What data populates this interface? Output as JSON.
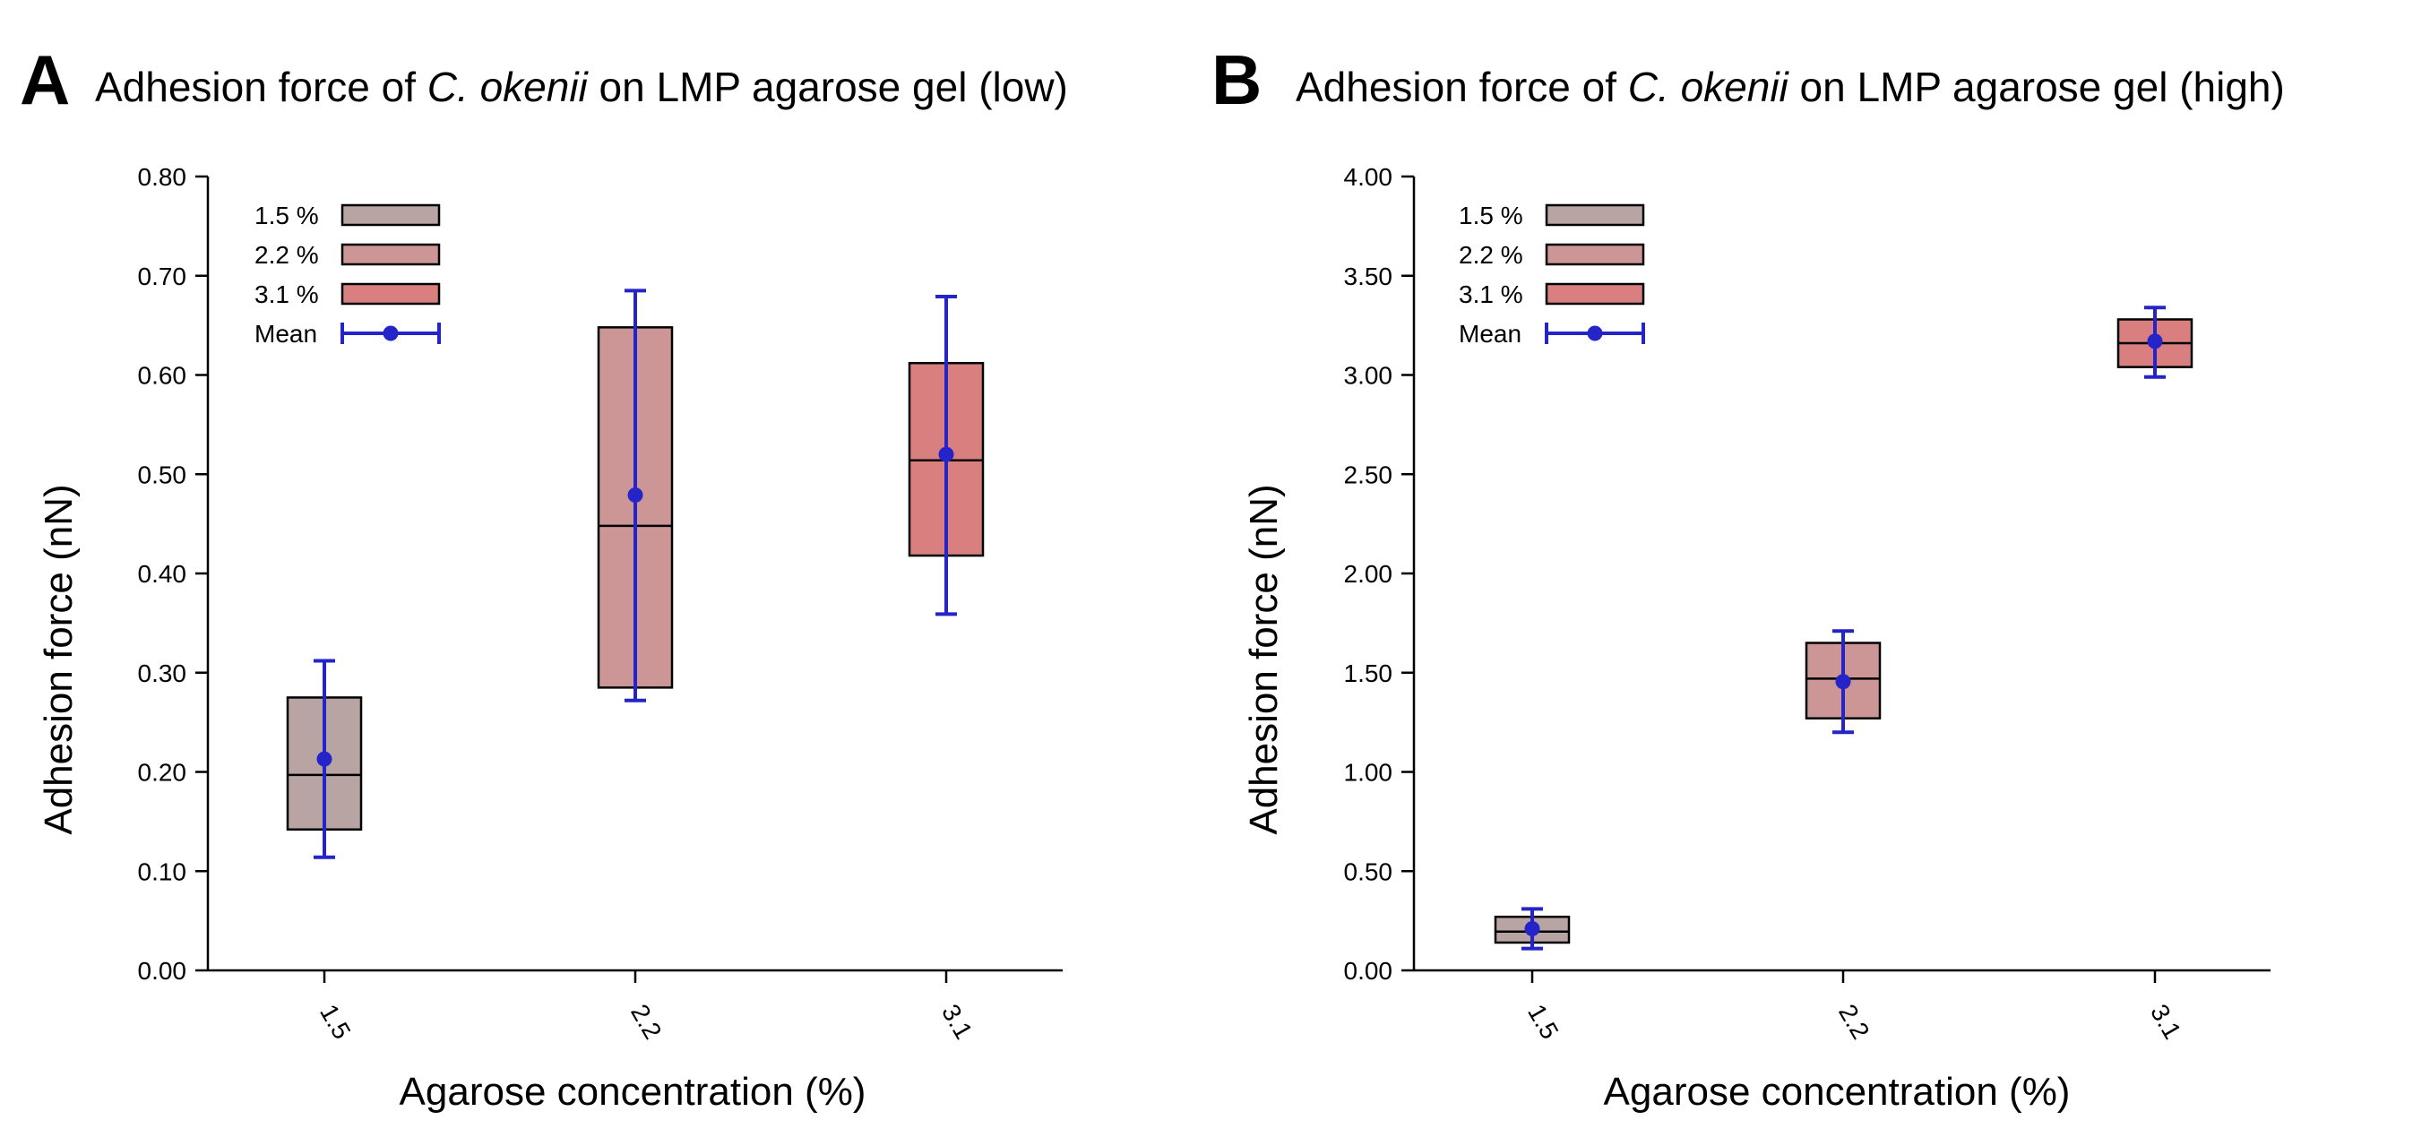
{
  "colors": {
    "c15": "#b9a4a4",
    "c22": "#cc9696",
    "c31": "#d97f7f",
    "mean": "#2424c8",
    "axis": "#000000"
  },
  "chart_data": [
    {
      "type": "box",
      "panel_letter": "A",
      "title_prefix": "Adhesion force of ",
      "title_italic": "C. okenii",
      "title_suffix": " on LMP agarose gel (low)",
      "xlabel": "Agarose concentration (%)",
      "ylabel": "Adhesion force (nN)",
      "ylim": [
        0,
        0.8
      ],
      "yticks": [
        "0.00",
        "0.10",
        "0.20",
        "0.30",
        "0.40",
        "0.50",
        "0.60",
        "0.70",
        "0.80"
      ],
      "categories": [
        "1.5",
        "2.2",
        "3.1"
      ],
      "boxes": [
        {
          "category": "1.5",
          "q1": 0.142,
          "median": 0.197,
          "q3": 0.275,
          "mean": 0.213,
          "err_low": 0.114,
          "err_high": 0.312
        },
        {
          "category": "2.2",
          "q1": 0.285,
          "median": 0.448,
          "q3": 0.648,
          "mean": 0.479,
          "err_low": 0.272,
          "err_high": 0.685
        },
        {
          "category": "3.1",
          "q1": 0.418,
          "median": 0.514,
          "q3": 0.612,
          "mean": 0.52,
          "err_low": 0.359,
          "err_high": 0.679
        }
      ],
      "legend": [
        {
          "label": "1.5 %",
          "kind": "box"
        },
        {
          "label": "2.2 %",
          "kind": "box"
        },
        {
          "label": "3.1 %",
          "kind": "box"
        },
        {
          "label": "Mean",
          "kind": "mean"
        }
      ],
      "legend_position": "top-left"
    },
    {
      "type": "box",
      "panel_letter": "B",
      "title_prefix": "Adhesion force of ",
      "title_italic": "C. okenii",
      "title_suffix": " on LMP agarose gel (high)",
      "xlabel": "Agarose concentration (%)",
      "ylabel": "Adhesion force (nN)",
      "ylim": [
        0,
        4
      ],
      "yticks": [
        "0.00",
        "0.50",
        "1.00",
        "1.50",
        "2.00",
        "2.50",
        "3.00",
        "3.50",
        "4.00"
      ],
      "categories": [
        "1.5",
        "2.2",
        "3.1"
      ],
      "boxes": [
        {
          "category": "1.5",
          "q1": 0.14,
          "median": 0.195,
          "q3": 0.27,
          "mean": 0.21,
          "err_low": 0.11,
          "err_high": 0.31
        },
        {
          "category": "2.2",
          "q1": 1.27,
          "median": 1.47,
          "q3": 1.65,
          "mean": 1.455,
          "err_low": 1.2,
          "err_high": 1.71
        },
        {
          "category": "3.1",
          "q1": 3.04,
          "median": 3.16,
          "q3": 3.28,
          "mean": 3.17,
          "err_low": 2.99,
          "err_high": 3.34
        }
      ],
      "legend": [
        {
          "label": "1.5 %",
          "kind": "box"
        },
        {
          "label": "2.2 %",
          "kind": "box"
        },
        {
          "label": "3.1 %",
          "kind": "box"
        },
        {
          "label": "Mean",
          "kind": "mean"
        }
      ],
      "legend_position": "top-left"
    }
  ]
}
